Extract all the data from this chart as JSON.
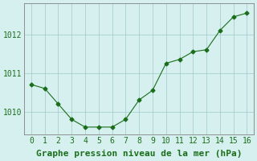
{
  "x": [
    0,
    1,
    2,
    3,
    4,
    5,
    6,
    7,
    8,
    9,
    10,
    11,
    12,
    13,
    14,
    15,
    16
  ],
  "y": [
    1010.7,
    1010.6,
    1010.2,
    1009.8,
    1009.6,
    1009.6,
    1009.6,
    1009.8,
    1010.3,
    1010.55,
    1011.25,
    1011.35,
    1011.55,
    1011.6,
    1012.1,
    1012.45,
    1012.55
  ],
  "line_color": "#1a6e1a",
  "marker_color": "#1a6e1a",
  "bg_color": "#d6f0f0",
  "grid_color": "#a0c8c8",
  "ylabel_ticks": [
    1010,
    1011,
    1012
  ],
  "xlabel_label": "Graphe pression niveau de la mer (hPa)",
  "ylim": [
    1009.4,
    1012.8
  ],
  "xlim": [
    -0.5,
    16.5
  ],
  "tick_fontsize": 7,
  "label_fontsize": 8,
  "linewidth": 0.8
}
